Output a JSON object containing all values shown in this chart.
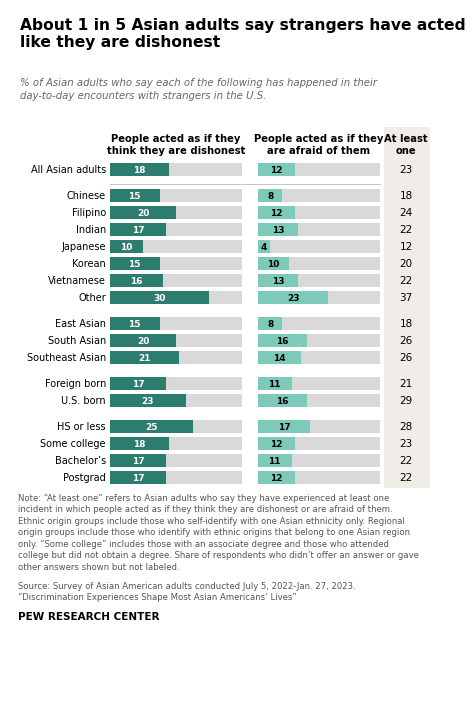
{
  "title_line1": "About 1 in 5 Asian adults say strangers have acted",
  "title_line2": "like they are dishonest",
  "subtitle": "% of Asian adults who say each of the following has happened in their\nday-to-day encounters with strangers in the U.S.",
  "col1_header": "People acted as if they\nthink they are dishonest",
  "col2_header": "People acted as if they\nare afraid of them",
  "col3_header": "At least\none",
  "categories": [
    "All Asian adults",
    "Chinese",
    "Filipino",
    "Indian",
    "Japanese",
    "Korean",
    "Vietnamese",
    "Other",
    "East Asian",
    "South Asian",
    "Southeast Asian",
    "Foreign born",
    "U.S. born",
    "HS or less",
    "Some college",
    "Bachelor’s",
    "Postgrad"
  ],
  "dishonest": [
    18,
    15,
    20,
    17,
    10,
    15,
    16,
    30,
    15,
    20,
    21,
    17,
    23,
    25,
    18,
    17,
    17
  ],
  "afraid": [
    12,
    8,
    12,
    13,
    4,
    10,
    13,
    23,
    8,
    16,
    14,
    11,
    16,
    17,
    12,
    11,
    12
  ],
  "at_least_one": [
    23,
    18,
    24,
    22,
    12,
    20,
    22,
    37,
    18,
    26,
    26,
    21,
    29,
    28,
    23,
    22,
    22
  ],
  "bar_max": 40,
  "color_dishonest": "#2d7d6e",
  "color_afraid": "#7ecaba",
  "color_bg_bar": "#d9d9d9",
  "color_at_least_bg": "#f0ede8",
  "group_breaks_after": [
    0,
    7,
    10,
    12
  ],
  "note": "Note: “At least one” refers to Asian adults who say they have experienced at least one\nincident in which people acted as if they think they are dishonest or are afraid of them.\nEthnic origin groups include those who self-identify with one Asian ethnicity only. Regional\norigin groups include those who identify with ethnic origins that belong to one Asian region\nonly. “Some college” includes those with an associate degree and those who attended\ncollege but did not obtain a degree. Share of respondents who didn’t offer an answer or gave\nother answers shown but not labeled.",
  "source": "Source: Survey of Asian American adults conducted July 5, 2022-Jan. 27, 2023.\n“Discrimination Experiences Shape Most Asian Americans’ Lives”",
  "credit": "PEW RESEARCH CENTER"
}
